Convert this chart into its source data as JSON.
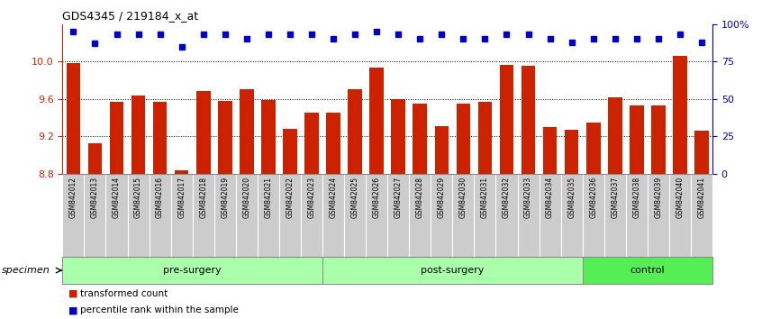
{
  "title": "GDS4345 / 219184_x_at",
  "samples": [
    "GSM842012",
    "GSM842013",
    "GSM842014",
    "GSM842015",
    "GSM842016",
    "GSM842017",
    "GSM842018",
    "GSM842019",
    "GSM842020",
    "GSM842021",
    "GSM842022",
    "GSM842023",
    "GSM842024",
    "GSM842025",
    "GSM842026",
    "GSM842027",
    "GSM842028",
    "GSM842029",
    "GSM842030",
    "GSM842031",
    "GSM842032",
    "GSM842033",
    "GSM842034",
    "GSM842035",
    "GSM842036",
    "GSM842037",
    "GSM842038",
    "GSM842039",
    "GSM842040",
    "GSM842041"
  ],
  "bar_values": [
    9.98,
    9.13,
    9.57,
    9.64,
    9.57,
    8.84,
    9.68,
    9.58,
    9.7,
    9.59,
    9.28,
    9.45,
    9.45,
    9.7,
    9.93,
    9.6,
    9.55,
    9.31,
    9.55,
    9.57,
    9.96,
    9.95,
    9.3,
    9.27,
    9.35,
    9.62,
    9.53,
    9.53,
    10.06,
    9.26
  ],
  "percentile_values": [
    95,
    87,
    93,
    93,
    93,
    85,
    93,
    93,
    90,
    93,
    93,
    93,
    90,
    93,
    95,
    93,
    90,
    93,
    90,
    90,
    93,
    93,
    90,
    88,
    90,
    90,
    90,
    90,
    93,
    88
  ],
  "ylim_left": [
    8.8,
    10.4
  ],
  "ylim_right": [
    0,
    100
  ],
  "yticks_left": [
    8.8,
    9.2,
    9.6,
    10.0
  ],
  "yticks_right": [
    0,
    25,
    50,
    75,
    100
  ],
  "ytick_labels_right": [
    "0",
    "25",
    "50",
    "75",
    "100%"
  ],
  "bar_color": "#cc2200",
  "dot_color": "#0000cc",
  "bar_bottom": 8.8,
  "groups": [
    {
      "label": "pre-surgery",
      "start": 0,
      "end": 11,
      "color": "#aaffaa"
    },
    {
      "label": "post-surgery",
      "start": 12,
      "end": 23,
      "color": "#aaffaa"
    },
    {
      "label": "control",
      "start": 24,
      "end": 29,
      "color": "#55ee55"
    }
  ],
  "legend_items": [
    {
      "label": "transformed count",
      "color": "#cc2200"
    },
    {
      "label": "percentile rank within the sample",
      "color": "#0000cc"
    }
  ],
  "specimen_label": "specimen",
  "label_bg": "#cccccc",
  "plot_bg": "#ffffff"
}
